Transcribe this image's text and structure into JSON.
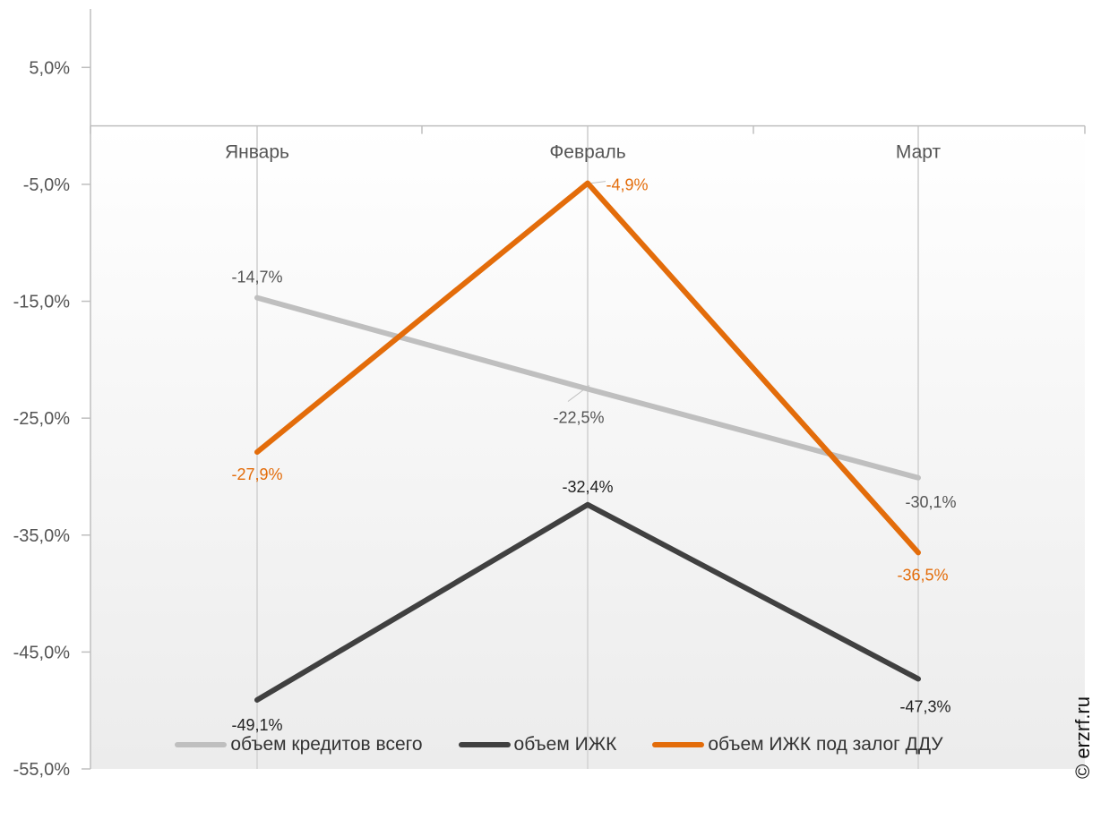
{
  "chart_data": {
    "type": "line",
    "categories": [
      "Январь",
      "Февраль",
      "Март"
    ],
    "y_ticks": [
      "5,0%",
      "-5,0%",
      "-15,0%",
      "-25,0%",
      "-35,0%",
      "-45,0%",
      "-55,0%"
    ],
    "y_tick_values": [
      5,
      -5,
      -15,
      -25,
      -35,
      -45,
      -55
    ],
    "ylim": [
      -55,
      10
    ],
    "grid": "vertical lines at categories",
    "legend_position": "bottom",
    "series": [
      {
        "name": "объем кредитов всего",
        "values": [
          -14.7,
          -22.5,
          -30.1
        ],
        "labels": [
          "-14,7%",
          "-22,5%",
          "-30,1%"
        ],
        "color": "#bfbfbf",
        "label_color": "#555555"
      },
      {
        "name": "объем ИЖК",
        "values": [
          -49.1,
          -32.4,
          -47.3
        ],
        "labels": [
          "-49,1%",
          "-32,4%",
          "-47,3%"
        ],
        "color": "#404040",
        "label_color": "#222222"
      },
      {
        "name": "объем ИЖК под залог ДДУ",
        "values": [
          -27.9,
          -4.9,
          -36.5
        ],
        "labels": [
          "-27,9%",
          "-4,9%",
          "-36,5%"
        ],
        "color": "#e36c0a",
        "label_color": "#e36c0a"
      }
    ]
  },
  "copyright": "© erzrf.ru"
}
